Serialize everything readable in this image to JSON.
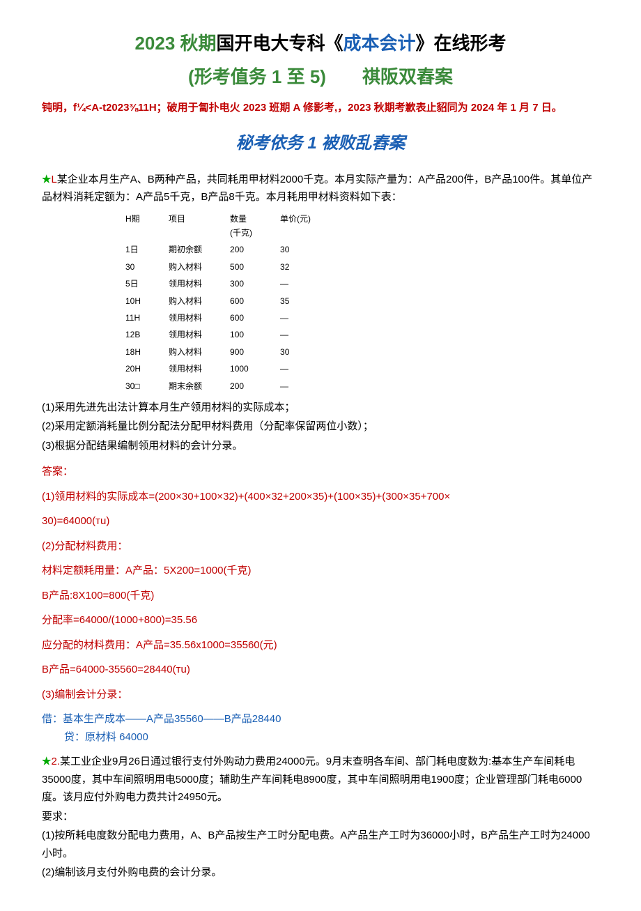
{
  "title1": {
    "green1": "2023 秋期",
    "black1": "国开电大专科《",
    "blue1": "成本会计",
    "black2": "》在线形考"
  },
  "title2": "(形考值务 1 至 5)  祺阪双舂案",
  "note": "钝明，f¼<A-t2023⅜11H；破用于匐扑电火 2023 班期 A 修影考,，2023 秋期考歉表止貂同为 2024 年 1 月 7 日。",
  "subtitle": "秘考依务 1 被败乱舂案",
  "q1": {
    "star": "★",
    "label": "L",
    "text": "某企业本月生产A、B两种产品，共同耗用甲材料2000千克。本月实际产量为：A产品200件，B产品100件。其单位产品材料消耗定额为：A产品5千克，B产品8千克。本月耗用甲材料资料如下表："
  },
  "table": {
    "headers": [
      "H期",
      "项目",
      "数量\n(千克)",
      "单价(元)"
    ],
    "rows": [
      [
        "1日",
        "期初余额",
        "200",
        "30"
      ],
      [
        "30",
        "购入材料",
        "500",
        "32"
      ],
      [
        "5日",
        "领用材料",
        "300",
        "—"
      ],
      [
        "10H",
        "购入材料",
        "600",
        "35"
      ],
      [
        "11H",
        "领用材料",
        "600",
        "—"
      ],
      [
        "12B",
        "领用材料",
        "100",
        "—"
      ],
      [
        "18H",
        "购入材料",
        "900",
        "30"
      ],
      [
        "20H",
        "领用材料",
        "1000",
        "—"
      ],
      [
        "30□",
        "期末余额",
        "200",
        "—"
      ]
    ]
  },
  "q1_req": [
    "(1)采用先进先出法计算本月生产领用材料的实际成本；",
    "(2)采用定额消耗量比例分配法分配甲材料费用（分配率保留两位小数）；",
    "(3)根据分配结果编制领用材料的会计分录。"
  ],
  "answer_label": "答案：",
  "a1": [
    "(1)领用材料的实际成本=(200×30+100×32)+(400×32+200×35)+(100×35)+(300×35+700×",
    "30)=64000(тu)",
    "(2)分配材料费用：",
    "材料定额耗用量：A产品：5X200=1000(千克)",
    "B产品:8X100=800(千克)",
    "分配率=64000/(1000+800)=35.56",
    "应分配的材料费用：A产品=35.56x1000=35560(元)",
    "B产品=64000-35560=28440(тu)"
  ],
  "a1_part3_label": "(3)编制会计分录：",
  "a1_entry1": "借：基本生产成本——A产品35560——B产品28440",
  "a1_entry2": "贷：原材料 64000",
  "q2": {
    "star": "★",
    "label": "2.",
    "text": "某工业企业9月26日通过银行支付外购动力费用24000元。9月末查明各车间、部门耗电度数为:基本生产车间耗电35000度，其中车间照明用电5000度；辅助生产车间耗电8900度，其中车间照明用电1900度；企业管理部门耗电6000度。该月应付外购电力费共计24950元。"
  },
  "q2_req_label": "要求：",
  "q2_req": [
    "(1)按所耗电度数分配电力费用，A、B产品按生产工时分配电费。A产品生产工时为36000小时，B产品生产工时为24000小时。",
    "(2)编制该月支付外购电费的会计分录。"
  ]
}
